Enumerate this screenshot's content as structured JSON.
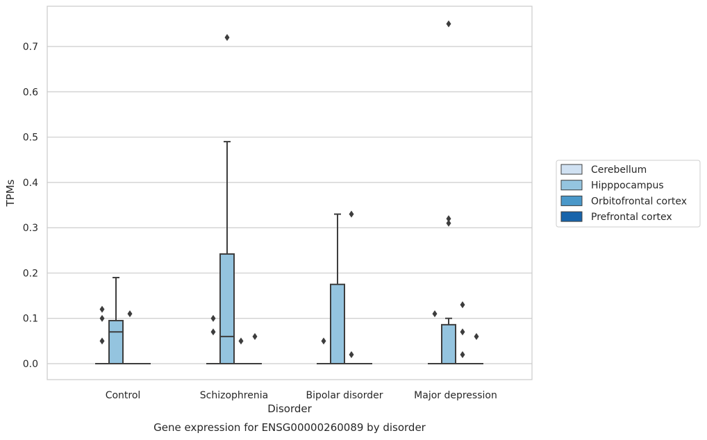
{
  "chart_data": {
    "type": "box",
    "title": "Gene expression for ENSG00000260089 by disorder",
    "xlabel": "Disorder",
    "ylabel": "TPMs",
    "categories": [
      "Control",
      "Schizophrenia",
      "Bipolar disorder",
      "Major depression"
    ],
    "ylim": [
      -0.036,
      0.79
    ],
    "yticks": [
      0.0,
      0.1,
      0.2,
      0.3,
      0.4,
      0.5,
      0.6,
      0.7
    ],
    "ytick_labels": [
      "0.0",
      "0.1",
      "0.2",
      "0.3",
      "0.4",
      "0.5",
      "0.6",
      "0.7"
    ],
    "grid": "horizontal",
    "legend_position": "right",
    "series": [
      {
        "name": "Cerebellum",
        "color": "#d0e1f2",
        "boxes": [
          {
            "q1": 0,
            "median": 0,
            "q3": 0,
            "whisker_low": 0,
            "whisker_high": 0,
            "outliers": [
              0.12,
              0.1,
              0.05
            ]
          },
          {
            "q1": 0,
            "median": 0,
            "q3": 0,
            "whisker_low": 0,
            "whisker_high": 0,
            "outliers": [
              0.1,
              0.07
            ]
          },
          {
            "q1": 0,
            "median": 0,
            "q3": 0,
            "whisker_low": 0,
            "whisker_high": 0,
            "outliers": [
              0.05
            ]
          },
          {
            "q1": 0,
            "median": 0,
            "q3": 0,
            "whisker_low": 0,
            "whisker_high": 0,
            "outliers": [
              0.11
            ]
          }
        ]
      },
      {
        "name": "Hipppocampus",
        "color": "#94c4df",
        "boxes": [
          {
            "q1": 0,
            "median": 0.07,
            "q3": 0.095,
            "whisker_low": 0,
            "whisker_high": 0.19,
            "outliers": []
          },
          {
            "q1": 0,
            "median": 0.06,
            "q3": 0.242,
            "whisker_low": 0,
            "whisker_high": 0.49,
            "outliers": [
              0.72
            ]
          },
          {
            "q1": 0,
            "median": 0,
            "q3": 0.175,
            "whisker_low": 0,
            "whisker_high": 0.33,
            "outliers": []
          },
          {
            "q1": 0,
            "median": 0,
            "q3": 0.086,
            "whisker_low": 0,
            "whisker_high": 0.1,
            "outliers": [
              0.75,
              0.32,
              0.31
            ]
          }
        ]
      },
      {
        "name": "Orbitofrontal cortex",
        "color": "#4a98c9",
        "boxes": [
          {
            "q1": 0,
            "median": 0,
            "q3": 0,
            "whisker_low": 0,
            "whisker_high": 0,
            "outliers": [
              0.11
            ]
          },
          {
            "q1": 0,
            "median": 0,
            "q3": 0,
            "whisker_low": 0,
            "whisker_high": 0,
            "outliers": [
              0.05
            ]
          },
          {
            "q1": 0,
            "median": 0,
            "q3": 0,
            "whisker_low": 0,
            "whisker_high": 0,
            "outliers": [
              0.33,
              0.02
            ]
          },
          {
            "q1": 0,
            "median": 0,
            "q3": 0,
            "whisker_low": 0,
            "whisker_high": 0,
            "outliers": [
              0.13,
              0.07,
              0.02
            ]
          }
        ]
      },
      {
        "name": "Prefrontal cortex",
        "color": "#1764ab",
        "boxes": [
          {
            "q1": 0,
            "median": 0,
            "q3": 0,
            "whisker_low": 0,
            "whisker_high": 0,
            "outliers": []
          },
          {
            "q1": 0,
            "median": 0,
            "q3": 0,
            "whisker_low": 0,
            "whisker_high": 0,
            "outliers": [
              0.06
            ]
          },
          {
            "q1": 0,
            "median": 0,
            "q3": 0,
            "whisker_low": 0,
            "whisker_high": 0,
            "outliers": []
          },
          {
            "q1": 0,
            "median": 0,
            "q3": 0,
            "whisker_low": 0,
            "whisker_high": 0,
            "outliers": [
              0.06
            ]
          }
        ]
      }
    ]
  }
}
